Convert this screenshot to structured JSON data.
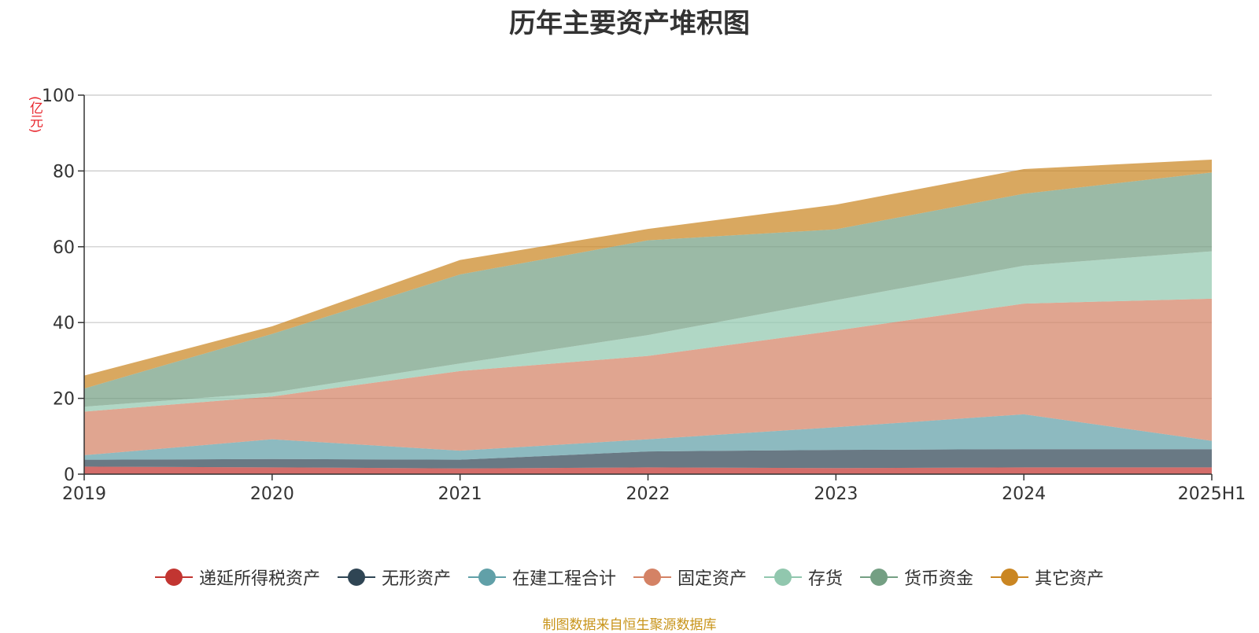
{
  "chart_data": {
    "type": "area",
    "stacked": true,
    "title": "历年主要资产堆积图",
    "unit_label": "(亿元)",
    "x": [
      "2019",
      "2020",
      "2021",
      "2022",
      "2023",
      "2024",
      "2025H1"
    ],
    "ylim": [
      0,
      100
    ],
    "yticks": [
      0,
      20,
      40,
      60,
      80,
      100
    ],
    "grid": true,
    "legend_position": "bottom",
    "series": [
      {
        "name": "递延所得税资产",
        "color": "#c23531",
        "values": [
          2.0,
          1.8,
          1.5,
          1.8,
          1.6,
          1.8,
          1.8
        ]
      },
      {
        "name": "无形资产",
        "color": "#2f4554",
        "values": [
          1.8,
          2.2,
          2.3,
          4.2,
          4.8,
          4.8,
          4.8
        ]
      },
      {
        "name": "在建工程合计",
        "color": "#61a0a8",
        "values": [
          1.2,
          5.2,
          2.4,
          3.2,
          6.0,
          9.2,
          2.2
        ]
      },
      {
        "name": "固定资产",
        "color": "#d48265",
        "values": [
          11.5,
          11.3,
          21.0,
          22.0,
          25.5,
          29.2,
          37.5
        ]
      },
      {
        "name": "存货",
        "color": "#91c7ae",
        "values": [
          1.3,
          1.0,
          2.0,
          5.5,
          8.0,
          10.0,
          12.5
        ]
      },
      {
        "name": "货币资金",
        "color": "#749f83",
        "values": [
          4.8,
          15.5,
          23.5,
          25.0,
          18.7,
          19.0,
          20.8
        ]
      },
      {
        "name": "其它资产",
        "color": "#ca8622",
        "values": [
          3.4,
          2.0,
          3.8,
          3.0,
          6.5,
          6.5,
          3.4
        ]
      }
    ]
  },
  "source_text": "制图数据来自恒生聚源数据库"
}
